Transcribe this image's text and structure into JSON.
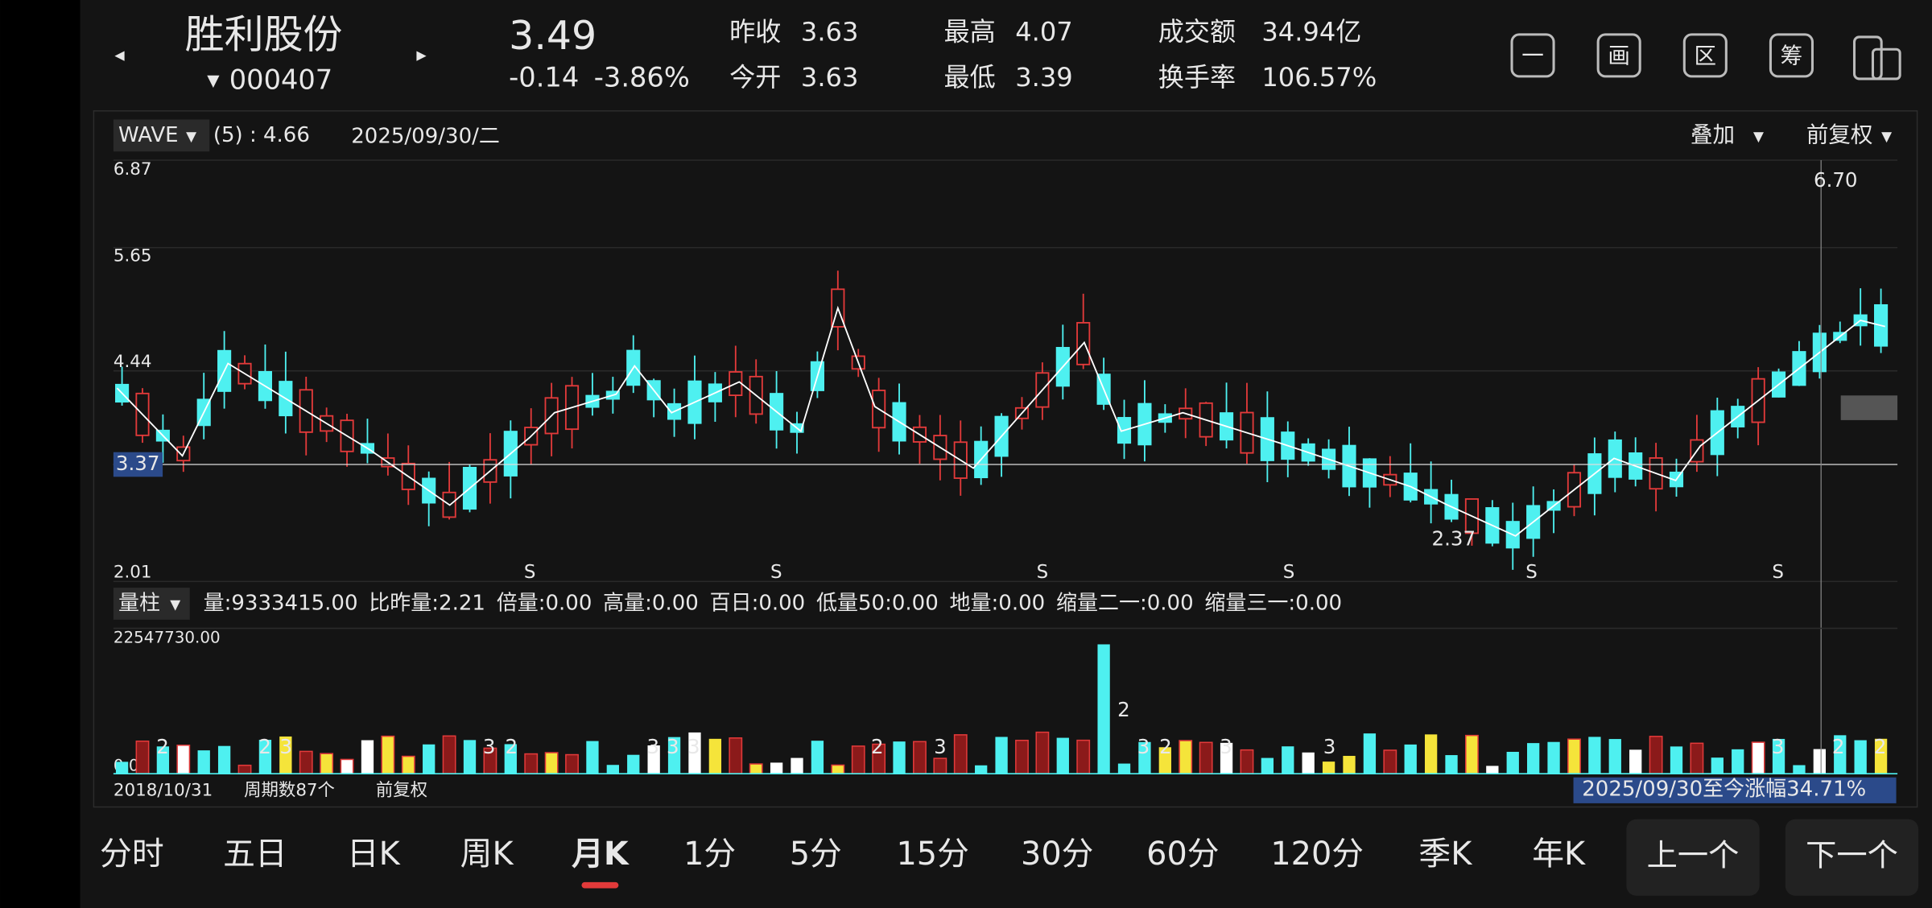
{
  "header": {
    "name": "胜利股份",
    "code": "000407",
    "price": "3.49",
    "change": "-0.14",
    "change_pct": "-3.86%",
    "stats": [
      {
        "label": "昨收",
        "value": "3.63",
        "color": "#e8e8e8"
      },
      {
        "label": "今开",
        "value": "3.63",
        "color": "#e8e8e8"
      },
      {
        "label": "最高",
        "value": "4.07",
        "color": "#f03c3c"
      },
      {
        "label": "最低",
        "value": "3.39",
        "color": "#2fbf4a"
      },
      {
        "label": "成交额",
        "value": "34.94亿",
        "color": "#e8e8e8"
      },
      {
        "label": "换手率",
        "value": "106.57%",
        "color": "#e8e8e8"
      }
    ],
    "icons": [
      "一",
      "画",
      "区",
      "筹"
    ]
  },
  "chart": {
    "indicator": "WAVE",
    "param": "(5) : 4.66",
    "date": "2025/09/30/二",
    "overlay": "叠加",
    "adjust": "前复权",
    "price_labels": [
      "6.87",
      "5.65",
      "4.44",
      "2.01"
    ],
    "current_label": "3.37",
    "high_label": "6.70",
    "low_label": "2.37",
    "signals": [
      "S",
      "S",
      "S",
      "S",
      "S",
      "S"
    ]
  },
  "volume": {
    "type": "量柱",
    "items": [
      {
        "text": "量:9333415.00",
        "color": "#e8e8e8"
      },
      {
        "text": "比昨量:2.21",
        "color": "#f5e43a"
      },
      {
        "text": "倍量:0.00",
        "color": "#f5e43a"
      },
      {
        "text": "高量:0.00",
        "color": "#f03c3c"
      },
      {
        "text": "百日:0.00",
        "color": "#3cc8e8"
      },
      {
        "text": "低量50:0.00",
        "color": "#f5e43a"
      },
      {
        "text": "地量:0.00",
        "color": "#9a9a9a"
      },
      {
        "text": "缩量二一:0.00",
        "color": "#2fbf4a"
      },
      {
        "text": "缩量三一:0.00",
        "color": "#3c8cf0"
      }
    ],
    "max_label": "22547730.00",
    "min_label": "0.00",
    "marks": [
      "2",
      "2",
      "3",
      "3",
      "2",
      "3",
      "3",
      "3",
      "2",
      "3",
      "2",
      "3",
      "2",
      "3",
      "3",
      "3",
      "2",
      "2"
    ]
  },
  "footer": {
    "start_date": "2018/10/31",
    "periods": "周期数87个",
    "adjust": "前复权",
    "gain": "2025/09/30至今涨幅34.71%"
  },
  "tabs": {
    "items": [
      "分时",
      "五日",
      "日K",
      "周K",
      "月K",
      "1分",
      "5分",
      "15分",
      "30分",
      "60分",
      "120分",
      "季K",
      "年K"
    ],
    "active": 4,
    "buttons": [
      "上一个",
      "下一个"
    ]
  }
}
